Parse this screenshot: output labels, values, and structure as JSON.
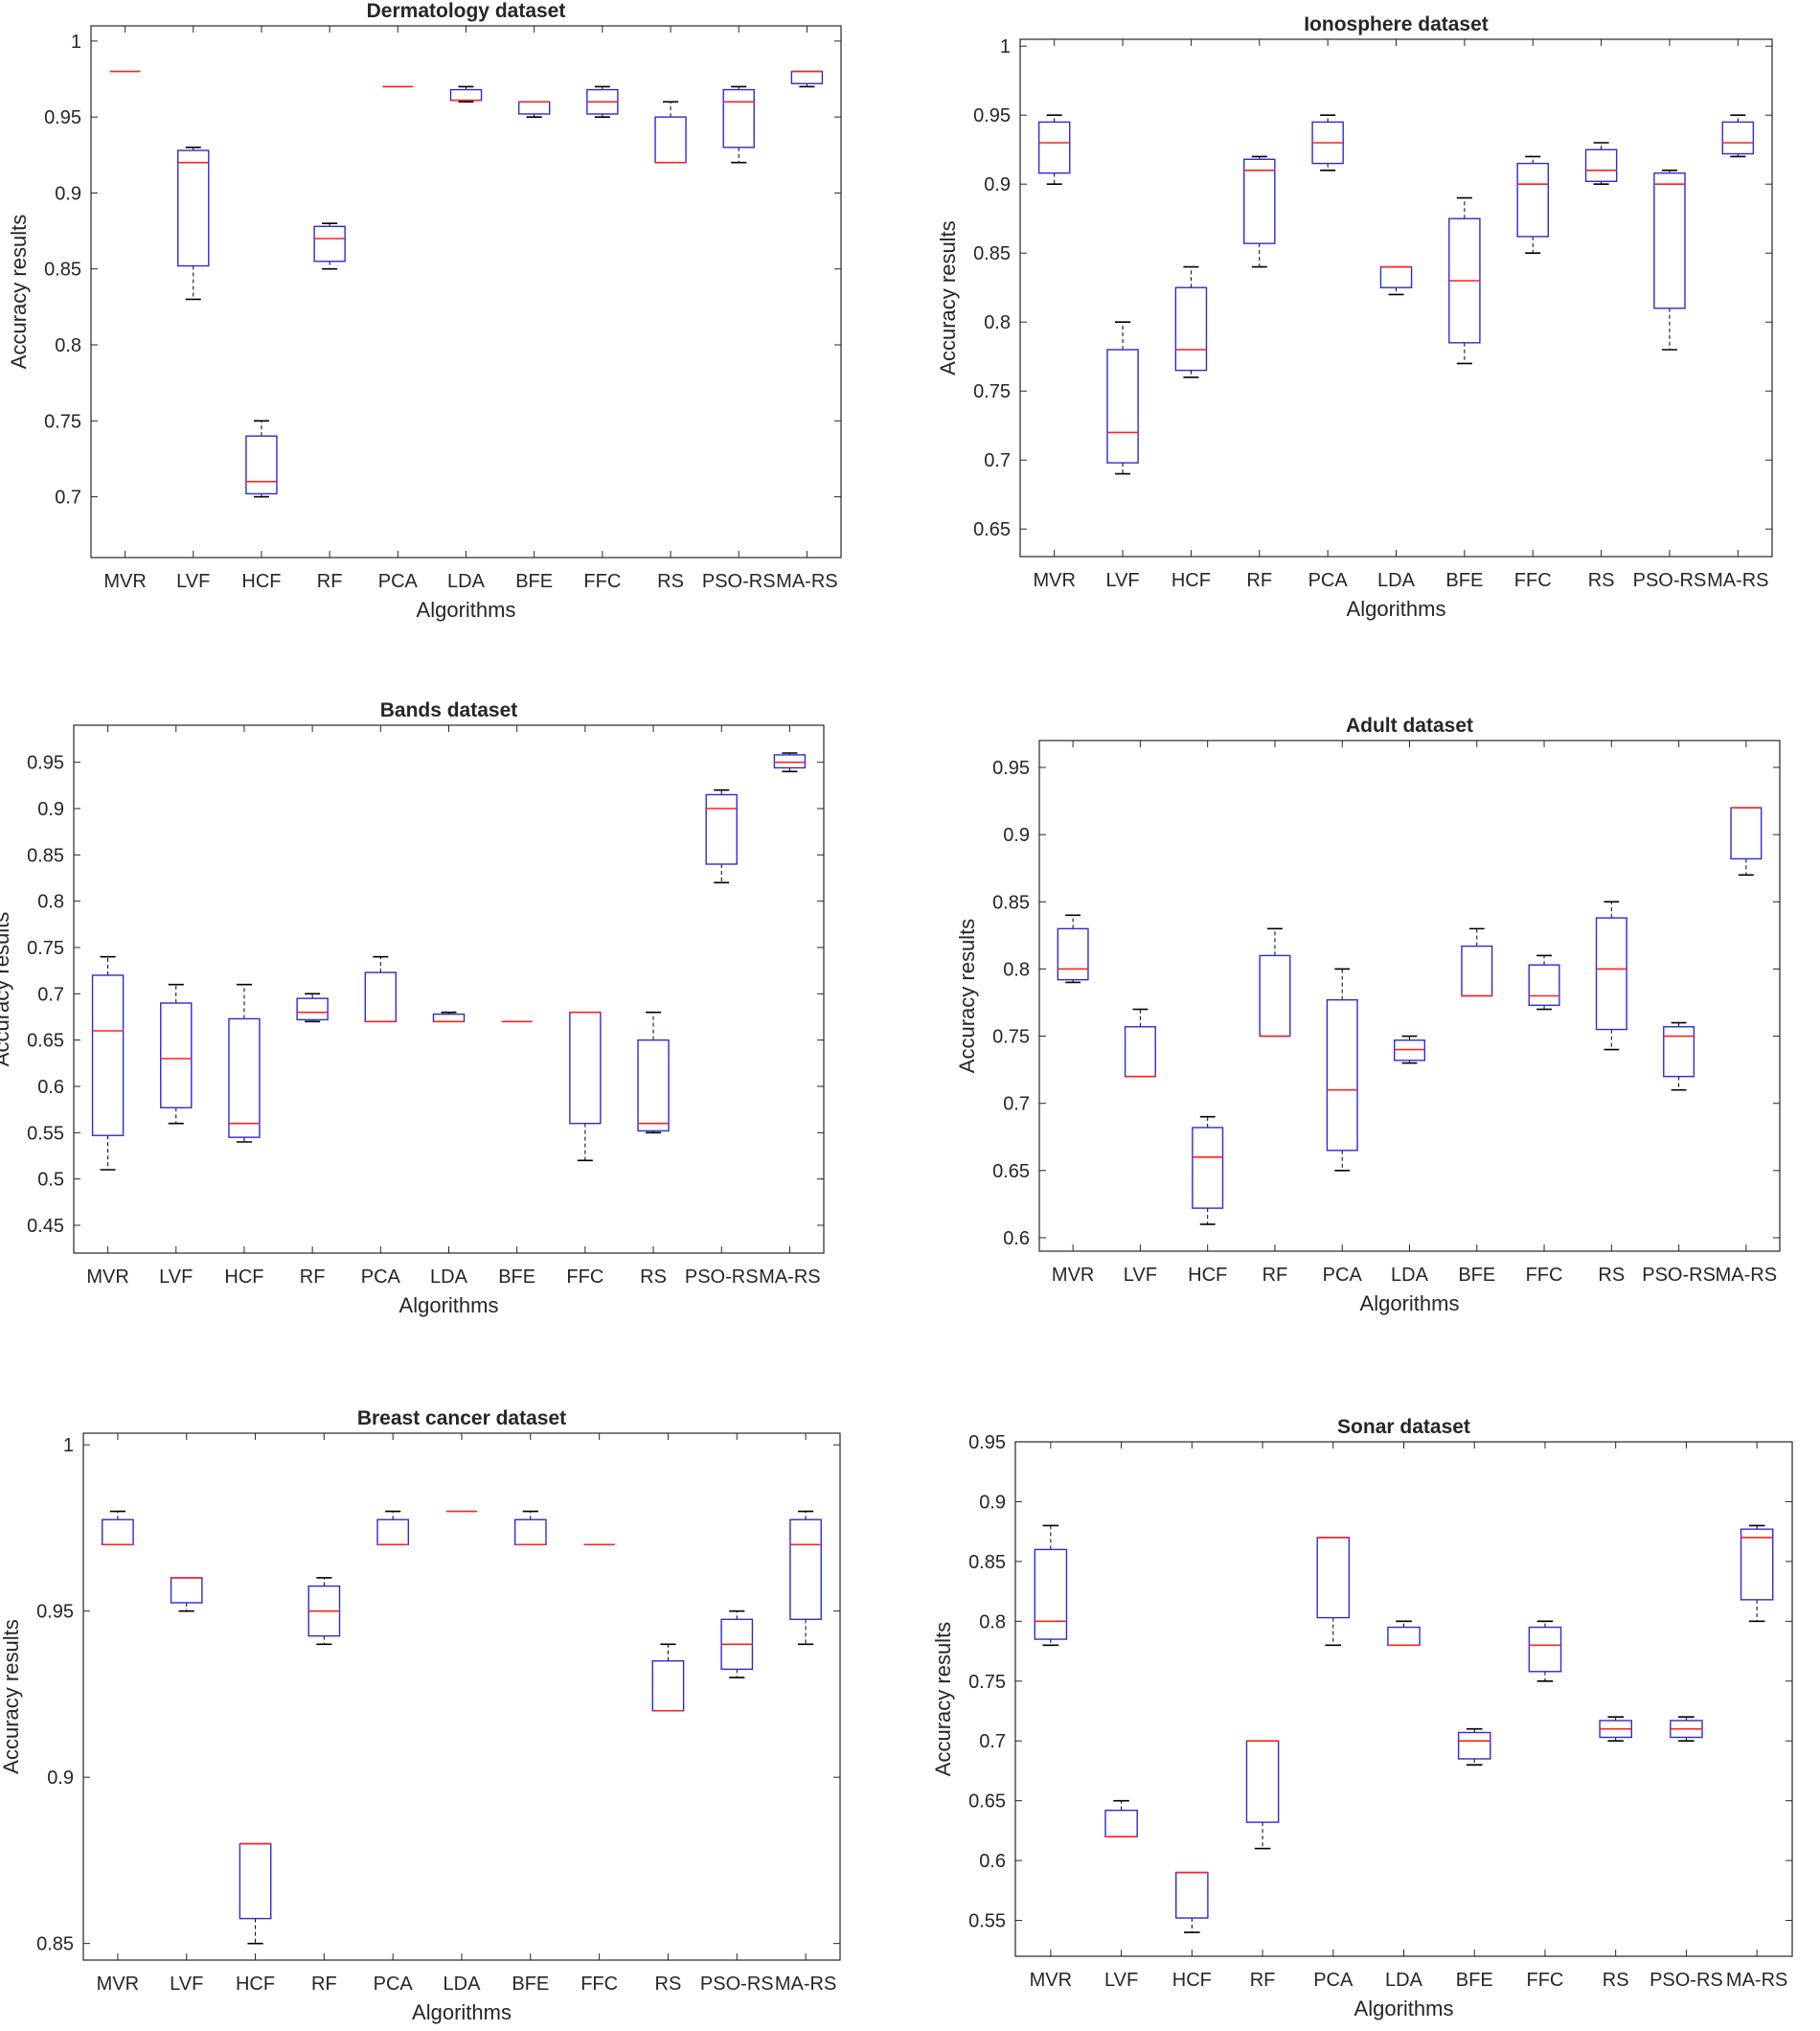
{
  "figure": {
    "colors": {
      "box": "#2b2bd6",
      "median": "#ff2020",
      "whisker": "#000000",
      "axis": "#262626",
      "background": "#ffffff"
    }
  },
  "chart_data": [
    {
      "type": "box",
      "title": "Dermatology dataset",
      "xlabel": "Algorithms",
      "ylabel": "Accuracy results",
      "categories": [
        "MVR",
        "LVF",
        "HCF",
        "RF",
        "PCA",
        "LDA",
        "BFE",
        "FFC",
        "RS",
        "PSO-RS",
        "MA-RS"
      ],
      "ylim": [
        0.66,
        1.01
      ],
      "yticks": [
        0.7,
        0.75,
        0.8,
        0.85,
        0.9,
        0.95,
        1
      ],
      "ytick_labels": [
        "0.7",
        "0.75",
        "0.8",
        "0.85",
        "0.9",
        "0.95",
        "1"
      ],
      "boxes": [
        {
          "min": 0.98,
          "q1": 0.98,
          "median": 0.98,
          "q3": 0.98,
          "max": 0.98
        },
        {
          "min": 0.83,
          "q1": 0.852,
          "median": 0.92,
          "q3": 0.928,
          "max": 0.93
        },
        {
          "min": 0.7,
          "q1": 0.702,
          "median": 0.71,
          "q3": 0.74,
          "max": 0.75
        },
        {
          "min": 0.85,
          "q1": 0.855,
          "median": 0.87,
          "q3": 0.878,
          "max": 0.88
        },
        {
          "min": 0.97,
          "q1": 0.97,
          "median": 0.97,
          "q3": 0.97,
          "max": 0.97
        },
        {
          "min": 0.96,
          "q1": 0.961,
          "median": 0.961,
          "q3": 0.968,
          "max": 0.97
        },
        {
          "min": 0.95,
          "q1": 0.952,
          "median": 0.96,
          "q3": 0.96,
          "max": 0.96
        },
        {
          "min": 0.95,
          "q1": 0.952,
          "median": 0.96,
          "q3": 0.968,
          "max": 0.97
        },
        {
          "min": 0.92,
          "q1": 0.92,
          "median": 0.92,
          "q3": 0.95,
          "max": 0.96
        },
        {
          "min": 0.92,
          "q1": 0.93,
          "median": 0.96,
          "q3": 0.968,
          "max": 0.97
        },
        {
          "min": 0.97,
          "q1": 0.972,
          "median": 0.98,
          "q3": 0.98,
          "max": 0.98
        }
      ]
    },
    {
      "type": "box",
      "title": "Ionosphere dataset",
      "xlabel": "Algorithms",
      "ylabel": "Accuracy results",
      "categories": [
        "MVR",
        "LVF",
        "HCF",
        "RF",
        "PCA",
        "LDA",
        "BFE",
        "FFC",
        "RS",
        "PSO-RS",
        "MA-RS"
      ],
      "ylim": [
        0.63,
        1.005
      ],
      "yticks": [
        0.65,
        0.7,
        0.75,
        0.8,
        0.85,
        0.9,
        0.95,
        1
      ],
      "ytick_labels": [
        "0.65",
        "0.7",
        "0.75",
        "0.8",
        "0.85",
        "0.9",
        "0.95",
        "1"
      ],
      "boxes": [
        {
          "min": 0.9,
          "q1": 0.908,
          "median": 0.93,
          "q3": 0.945,
          "max": 0.95
        },
        {
          "min": 0.69,
          "q1": 0.698,
          "median": 0.72,
          "q3": 0.78,
          "max": 0.8
        },
        {
          "min": 0.76,
          "q1": 0.765,
          "median": 0.78,
          "q3": 0.825,
          "max": 0.84
        },
        {
          "min": 0.84,
          "q1": 0.857,
          "median": 0.91,
          "q3": 0.918,
          "max": 0.92
        },
        {
          "min": 0.91,
          "q1": 0.915,
          "median": 0.93,
          "q3": 0.945,
          "max": 0.95
        },
        {
          "min": 0.82,
          "q1": 0.825,
          "median": 0.84,
          "q3": 0.84,
          "max": 0.84
        },
        {
          "min": 0.77,
          "q1": 0.785,
          "median": 0.83,
          "q3": 0.875,
          "max": 0.89
        },
        {
          "min": 0.85,
          "q1": 0.862,
          "median": 0.9,
          "q3": 0.915,
          "max": 0.92
        },
        {
          "min": 0.9,
          "q1": 0.902,
          "median": 0.91,
          "q3": 0.925,
          "max": 0.93
        },
        {
          "min": 0.78,
          "q1": 0.81,
          "median": 0.9,
          "q3": 0.908,
          "max": 0.91
        },
        {
          "min": 0.92,
          "q1": 0.922,
          "median": 0.93,
          "q3": 0.945,
          "max": 0.95
        }
      ]
    },
    {
      "type": "box",
      "title": "Bands dataset",
      "xlabel": "Algorithms",
      "ylabel": "Accuracy results",
      "categories": [
        "MVR",
        "LVF",
        "HCF",
        "RF",
        "PCA",
        "LDA",
        "BFE",
        "FFC",
        "RS",
        "PSO-RS",
        "MA-RS"
      ],
      "ylim": [
        0.42,
        0.99
      ],
      "yticks": [
        0.45,
        0.5,
        0.55,
        0.6,
        0.65,
        0.7,
        0.75,
        0.8,
        0.85,
        0.9,
        0.95
      ],
      "ytick_labels": [
        "0.45",
        "0.5",
        "0.55",
        "0.6",
        "0.65",
        "0.7",
        "0.75",
        "0.8",
        "0.85",
        "0.9",
        "0.95"
      ],
      "boxes": [
        {
          "min": 0.51,
          "q1": 0.547,
          "median": 0.66,
          "q3": 0.72,
          "max": 0.74
        },
        {
          "min": 0.56,
          "q1": 0.577,
          "median": 0.63,
          "q3": 0.69,
          "max": 0.71
        },
        {
          "min": 0.54,
          "q1": 0.545,
          "median": 0.56,
          "q3": 0.673,
          "max": 0.71
        },
        {
          "min": 0.67,
          "q1": 0.672,
          "median": 0.68,
          "q3": 0.695,
          "max": 0.7
        },
        {
          "min": 0.67,
          "q1": 0.67,
          "median": 0.67,
          "q3": 0.723,
          "max": 0.74
        },
        {
          "min": 0.67,
          "q1": 0.67,
          "median": 0.67,
          "q3": 0.678,
          "max": 0.68
        },
        {
          "min": 0.67,
          "q1": 0.67,
          "median": 0.67,
          "q3": 0.67,
          "max": 0.67
        },
        {
          "min": 0.52,
          "q1": 0.56,
          "median": 0.68,
          "q3": 0.68,
          "max": 0.68
        },
        {
          "min": 0.55,
          "q1": 0.552,
          "median": 0.56,
          "q3": 0.65,
          "max": 0.68
        },
        {
          "min": 0.82,
          "q1": 0.84,
          "median": 0.9,
          "q3": 0.915,
          "max": 0.92
        },
        {
          "min": 0.94,
          "q1": 0.944,
          "median": 0.95,
          "q3": 0.958,
          "max": 0.96
        }
      ]
    },
    {
      "type": "box",
      "title": "Adult dataset",
      "xlabel": "Algorithms",
      "ylabel": "Accuracy results",
      "categories": [
        "MVR",
        "LVF",
        "HCF",
        "RF",
        "PCA",
        "LDA",
        "BFE",
        "FFC",
        "RS",
        "PSO-RS",
        "MA-RS"
      ],
      "ylim": [
        0.59,
        0.97
      ],
      "yticks": [
        0.6,
        0.65,
        0.7,
        0.75,
        0.8,
        0.85,
        0.9,
        0.95
      ],
      "ytick_labels": [
        "0.6",
        "0.65",
        "0.7",
        "0.75",
        "0.8",
        "0.85",
        "0.9",
        "0.95"
      ],
      "boxes": [
        {
          "min": 0.79,
          "q1": 0.792,
          "median": 0.8,
          "q3": 0.83,
          "max": 0.84
        },
        {
          "min": 0.72,
          "q1": 0.72,
          "median": 0.72,
          "q3": 0.757,
          "max": 0.77
        },
        {
          "min": 0.61,
          "q1": 0.622,
          "median": 0.66,
          "q3": 0.682,
          "max": 0.69
        },
        {
          "min": 0.75,
          "q1": 0.75,
          "median": 0.75,
          "q3": 0.81,
          "max": 0.83
        },
        {
          "min": 0.65,
          "q1": 0.665,
          "median": 0.71,
          "q3": 0.777,
          "max": 0.8
        },
        {
          "min": 0.73,
          "q1": 0.732,
          "median": 0.74,
          "q3": 0.747,
          "max": 0.75
        },
        {
          "min": 0.78,
          "q1": 0.78,
          "median": 0.78,
          "q3": 0.817,
          "max": 0.83
        },
        {
          "min": 0.77,
          "q1": 0.773,
          "median": 0.78,
          "q3": 0.803,
          "max": 0.81
        },
        {
          "min": 0.74,
          "q1": 0.755,
          "median": 0.8,
          "q3": 0.838,
          "max": 0.85
        },
        {
          "min": 0.71,
          "q1": 0.72,
          "median": 0.75,
          "q3": 0.757,
          "max": 0.76
        },
        {
          "min": 0.87,
          "q1": 0.882,
          "median": 0.92,
          "q3": 0.92,
          "max": 0.92
        }
      ]
    },
    {
      "type": "box",
      "title": "Breast cancer dataset",
      "xlabel": "Algorithms",
      "ylabel": "Accuracy results",
      "categories": [
        "MVR",
        "LVF",
        "HCF",
        "RF",
        "PCA",
        "LDA",
        "BFE",
        "FFC",
        "RS",
        "PSO-RS",
        "MA-RS"
      ],
      "ylim": [
        0.845,
        1.0035
      ],
      "yticks": [
        0.85,
        0.9,
        0.95,
        1
      ],
      "ytick_labels": [
        "0.85",
        "0.9",
        "0.95",
        "1"
      ],
      "boxes": [
        {
          "min": 0.97,
          "q1": 0.97,
          "median": 0.97,
          "q3": 0.9775,
          "max": 0.98
        },
        {
          "min": 0.95,
          "q1": 0.9525,
          "median": 0.96,
          "q3": 0.96,
          "max": 0.96
        },
        {
          "min": 0.85,
          "q1": 0.8575,
          "median": 0.88,
          "q3": 0.88,
          "max": 0.88
        },
        {
          "min": 0.94,
          "q1": 0.9425,
          "median": 0.95,
          "q3": 0.9575,
          "max": 0.96
        },
        {
          "min": 0.97,
          "q1": 0.97,
          "median": 0.97,
          "q3": 0.9775,
          "max": 0.98
        },
        {
          "min": 0.98,
          "q1": 0.98,
          "median": 0.98,
          "q3": 0.98,
          "max": 0.98
        },
        {
          "min": 0.97,
          "q1": 0.97,
          "median": 0.97,
          "q3": 0.9775,
          "max": 0.98
        },
        {
          "min": 0.97,
          "q1": 0.97,
          "median": 0.97,
          "q3": 0.97,
          "max": 0.97
        },
        {
          "min": 0.92,
          "q1": 0.92,
          "median": 0.92,
          "q3": 0.935,
          "max": 0.94
        },
        {
          "min": 0.93,
          "q1": 0.9325,
          "median": 0.94,
          "q3": 0.9475,
          "max": 0.95
        },
        {
          "min": 0.94,
          "q1": 0.9475,
          "median": 0.97,
          "q3": 0.9775,
          "max": 0.98
        }
      ]
    },
    {
      "type": "box",
      "title": "Sonar dataset",
      "xlabel": "Algorithms",
      "ylabel": "Accuracy results",
      "categories": [
        "MVR",
        "LVF",
        "HCF",
        "RF",
        "PCA",
        "LDA",
        "BFE",
        "FFC",
        "RS",
        "PSO-RS",
        "MA-RS"
      ],
      "ylim": [
        0.52,
        0.95
      ],
      "yticks": [
        0.55,
        0.6,
        0.65,
        0.7,
        0.75,
        0.8,
        0.85,
        0.9,
        0.95
      ],
      "ytick_labels": [
        "0.55",
        "0.6",
        "0.65",
        "0.7",
        "0.75",
        "0.8",
        "0.85",
        "0.9",
        "0.95"
      ],
      "boxes": [
        {
          "min": 0.78,
          "q1": 0.785,
          "median": 0.8,
          "q3": 0.86,
          "max": 0.88
        },
        {
          "min": 0.62,
          "q1": 0.62,
          "median": 0.62,
          "q3": 0.642,
          "max": 0.65
        },
        {
          "min": 0.54,
          "q1": 0.552,
          "median": 0.59,
          "q3": 0.59,
          "max": 0.59
        },
        {
          "min": 0.61,
          "q1": 0.632,
          "median": 0.7,
          "q3": 0.7,
          "max": 0.7
        },
        {
          "min": 0.78,
          "q1": 0.803,
          "median": 0.87,
          "q3": 0.87,
          "max": 0.87
        },
        {
          "min": 0.78,
          "q1": 0.78,
          "median": 0.78,
          "q3": 0.795,
          "max": 0.8
        },
        {
          "min": 0.68,
          "q1": 0.685,
          "median": 0.7,
          "q3": 0.707,
          "max": 0.71
        },
        {
          "min": 0.75,
          "q1": 0.758,
          "median": 0.78,
          "q3": 0.795,
          "max": 0.8
        },
        {
          "min": 0.7,
          "q1": 0.703,
          "median": 0.71,
          "q3": 0.717,
          "max": 0.72
        },
        {
          "min": 0.7,
          "q1": 0.703,
          "median": 0.71,
          "q3": 0.717,
          "max": 0.72
        },
        {
          "min": 0.8,
          "q1": 0.818,
          "median": 0.87,
          "q3": 0.877,
          "max": 0.88
        }
      ]
    }
  ]
}
